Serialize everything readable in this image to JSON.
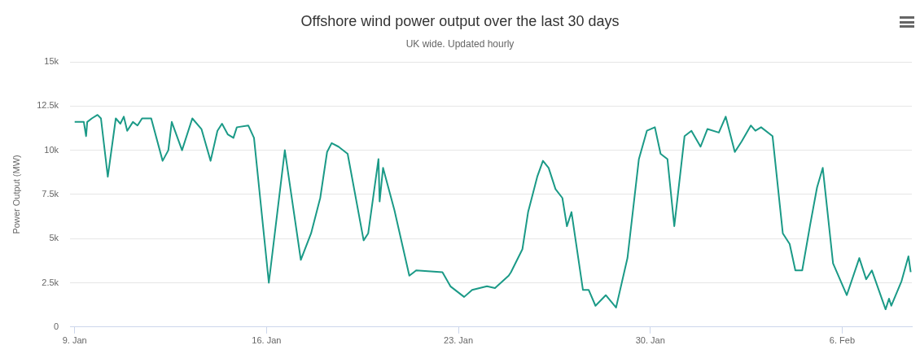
{
  "chart_data": {
    "type": "line",
    "title": "Offshore wind power output over the last 30 days",
    "subtitle": "UK wide. Updated hourly",
    "ylabel": "Power Output (MW)",
    "x": [
      "--01-09T00:00",
      "--01-09T08:00",
      "--01-09T10:00",
      "--01-09T11:00",
      "--01-09T15:00",
      "--01-09T20:00",
      "--01-09T23:00",
      "--01-10T05:00",
      "--01-10T12:00",
      "--01-10T16:00",
      "--01-10T19:00",
      "--01-10T22:00",
      "--01-11T03:00",
      "--01-11T07:00",
      "--01-11T11:00",
      "--01-11T19:00",
      "--01-12T05:00",
      "--01-12T10:00",
      "--01-12T13:00",
      "--01-12T22:00",
      "--01-13T07:00",
      "--01-13T15:00",
      "--01-13T23:00",
      "--01-14T05:00",
      "--01-14T09:00",
      "--01-14T14:00",
      "--01-14T19:00",
      "--01-14T22:00",
      "--01-15T08:00",
      "--01-15T13:00",
      "--01-16T02:00",
      "--01-16T16:00",
      "--01-17T06:00",
      "--01-17T15:00",
      "--01-17T23:00",
      "--01-18T05:00",
      "--01-18T09:00",
      "--01-18T15:00",
      "--01-18T23:00",
      "--01-19T13:00",
      "--01-19T17:00",
      "--01-20T02:00",
      "--01-20T03:00",
      "--01-20T06:00",
      "--01-20T16:00",
      "--01-21T05:00",
      "--01-21T11:00",
      "--01-22T10:00",
      "--01-22T17:00",
      "--01-23T05:00",
      "--01-23T12:00",
      "--01-24T01:00",
      "--01-24T08:00",
      "--01-24T20:00",
      "--01-24T22:00",
      "--01-25T08:00",
      "--01-25T13:00",
      "--01-25T21:00",
      "--01-26T02:00",
      "--01-26T07:00",
      "--01-26T13:00",
      "--01-26T19:00",
      "--01-26T23:00",
      "--01-27T03:00",
      "--01-27T13:00",
      "--01-27T18:00",
      "--01-28T00:00",
      "--01-28T09:00",
      "--01-28T18:00",
      "--01-29T04:00",
      "--01-29T14:00",
      "--01-29T21:00",
      "--01-30T04:00",
      "--01-30T09:00",
      "--01-30T15:00",
      "--01-30T21:00",
      "--01-31T06:00",
      "--01-31T12:00",
      "--01-31T20:00",
      "--02-01T02:00",
      "--02-01T12:00",
      "--02-01T18:00",
      "--02-02T02:00",
      "--02-02T08:00",
      "--02-02T16:00",
      "--02-02T20:00",
      "--02-03T01:00",
      "--02-03T11:00",
      "--02-03T20:00",
      "--02-04T02:00",
      "--02-04T07:00",
      "--02-04T13:00",
      "--02-04T20:00",
      "--02-05T02:00",
      "--02-05T07:00",
      "--02-05T16:00",
      "--02-06T04:00",
      "--02-06T15:00",
      "--02-06T21:00",
      "--02-07T02:00",
      "--02-07T14:00",
      "--02-07T17:00",
      "--02-07T19:00",
      "--02-08T04:00",
      "--02-08T10:00",
      "--02-08T12:00"
    ],
    "series": [
      {
        "color": "#1b9a87",
        "values": [
          11600,
          11600,
          10800,
          11600,
          11800,
          12000,
          11800,
          8500,
          11800,
          11500,
          11900,
          11100,
          11600,
          11400,
          11800,
          11800,
          9400,
          10000,
          11600,
          10000,
          11800,
          11200,
          9400,
          11100,
          11500,
          10900,
          10700,
          11300,
          11400,
          10700,
          2500,
          10000,
          3800,
          5300,
          7300,
          9900,
          10400,
          10200,
          9800,
          4900,
          5300,
          9500,
          7100,
          9000,
          6600,
          2900,
          3200,
          3100,
          2300,
          1700,
          2100,
          2300,
          2200,
          2900,
          3100,
          4400,
          6500,
          8500,
          9400,
          9000,
          7800,
          7300,
          5700,
          6500,
          2100,
          2100,
          1200,
          1800,
          1100,
          3900,
          9500,
          11100,
          11300,
          9800,
          9500,
          5700,
          10800,
          11100,
          10200,
          11200,
          11000,
          11900,
          9900,
          10500,
          11400,
          11100,
          11300,
          10800,
          5300,
          4700,
          3200,
          3200,
          5800,
          7900,
          9000,
          3600,
          1800,
          3900,
          2700,
          3200,
          1000,
          1600,
          1200,
          2600,
          4000,
          3100
        ]
      }
    ],
    "xlim": [
      "--01-08T20:00",
      "--02-08T13:00"
    ],
    "xticks": [
      {
        "value": "--01-09",
        "label": "9. Jan"
      },
      {
        "value": "--01-16",
        "label": "16. Jan"
      },
      {
        "value": "--01-23",
        "label": "23. Jan"
      },
      {
        "value": "--01-30",
        "label": "30. Jan"
      },
      {
        "value": "--02-06",
        "label": "6. Feb"
      }
    ],
    "ylim": [
      0,
      15000
    ],
    "yticks": [
      0,
      {
        "value": 2500,
        "label": "2.5k"
      },
      {
        "value": 5000,
        "label": "5k"
      },
      {
        "value": 7500,
        "label": "7.5k"
      },
      {
        "value": 10000,
        "label": "10k"
      },
      {
        "value": 12500,
        "label": "12.5k"
      },
      {
        "value": 15000,
        "label": "15k"
      }
    ],
    "grid": "y",
    "legend": false,
    "marker": "none",
    "line_style": "solid"
  }
}
